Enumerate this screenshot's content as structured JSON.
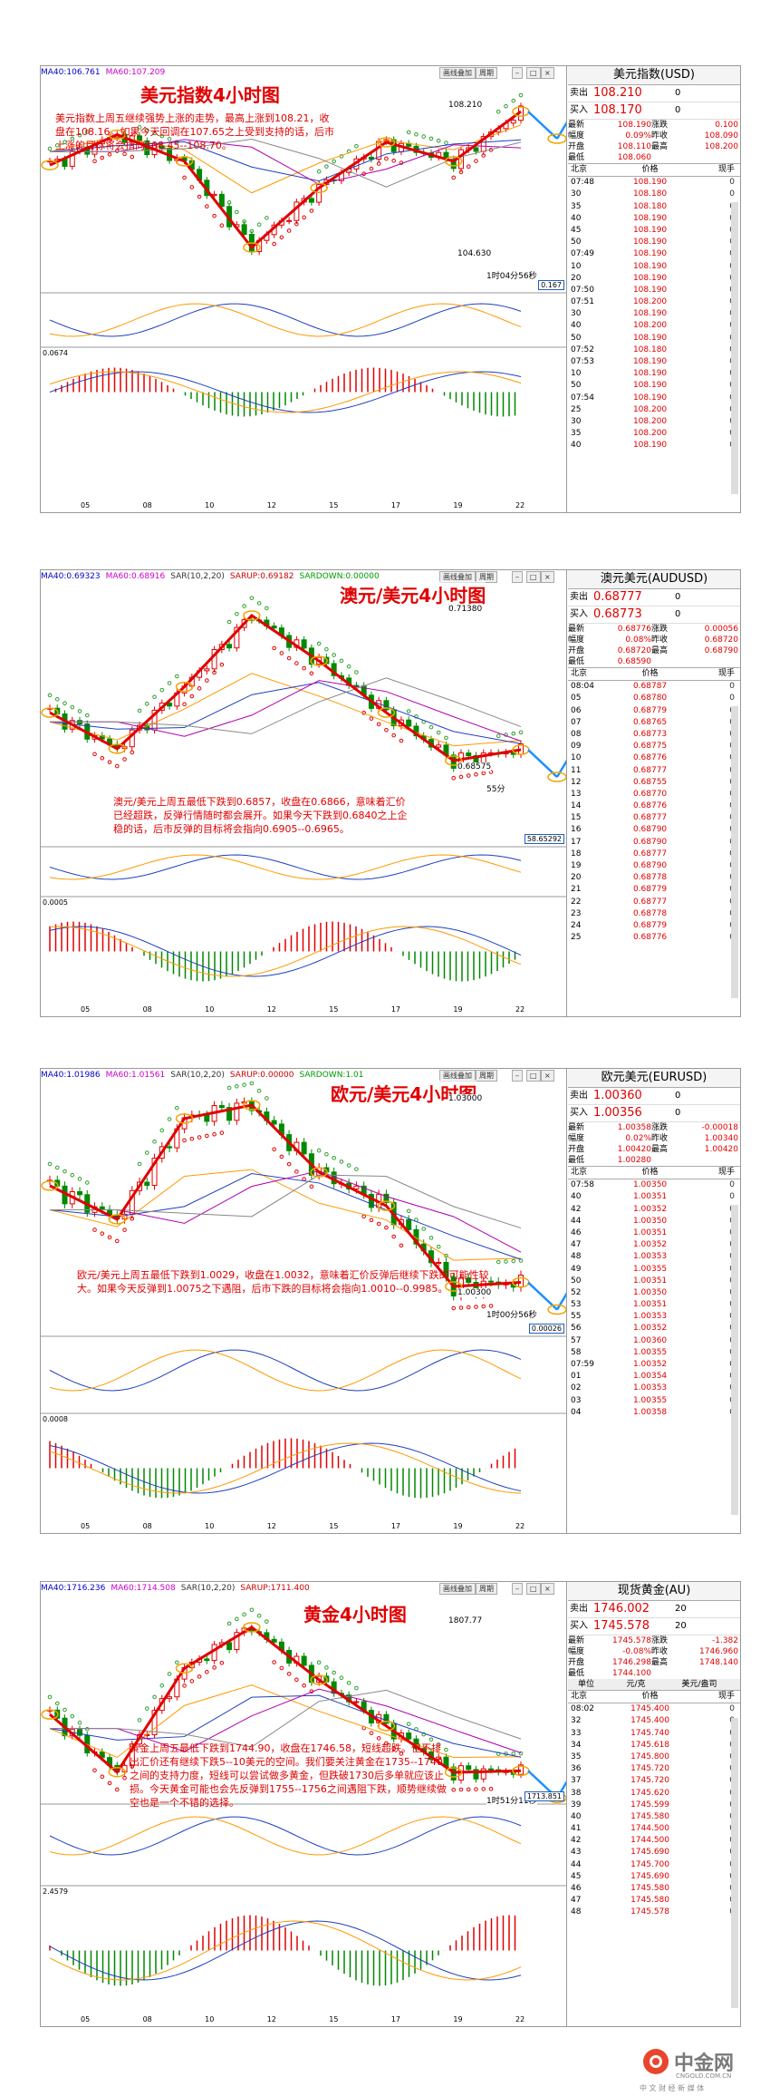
{
  "panels": [
    {
      "id": "usd",
      "title": "美元指数4小时图",
      "indicators": [
        "MA40:106.761",
        "MA60:107.209"
      ],
      "buttons": [
        "画线叠加",
        "周期"
      ],
      "annotation": "美元指数上周五继续强势上涨的走势，最高上涨到108.21，收盘在108.16。如果今天回调在107.65之上受到支持的话，后市上涨的目标将会指向108.45--108.70。",
      "price_labels": [
        "108.210",
        "104.630"
      ],
      "timer": "1时04分56秒",
      "macd_low": "0.0674",
      "macd_box": "0.167",
      "x_ticks": [
        "05",
        "08",
        "10",
        "12",
        "15",
        "17",
        "19",
        "22"
      ],
      "quote": {
        "name": "美元指数(USD)",
        "sell_label": "卖出",
        "sell": "108.210",
        "sell_vol": "0",
        "buy_label": "买入",
        "buy": "108.170",
        "buy_vol": "0",
        "stats": [
          [
            "最新",
            "108.190",
            "涨跌",
            "0.100"
          ],
          [
            "幅度",
            "0.09%",
            "昨收",
            "108.090"
          ],
          [
            "开盘",
            "108.110",
            "最高",
            "108.200"
          ],
          [
            "最低",
            "108.060",
            "",
            ""
          ]
        ],
        "head": [
          "北京",
          "价格",
          "现手"
        ],
        "ticks": [
          [
            "07:48",
            "108.190",
            "0"
          ],
          [
            "30",
            "108.180",
            "0"
          ],
          [
            "35",
            "108.180",
            "0"
          ],
          [
            "40",
            "108.190",
            "0"
          ],
          [
            "45",
            "108.190",
            "0"
          ],
          [
            "50",
            "108.190",
            "0"
          ],
          [
            "07:49",
            "108.190",
            "0"
          ],
          [
            "10",
            "108.190",
            "0"
          ],
          [
            "20",
            "108.190",
            "0"
          ],
          [
            "07:50",
            "108.190",
            "0"
          ],
          [
            "07:51",
            "108.200",
            "0"
          ],
          [
            "30",
            "108.190",
            "0"
          ],
          [
            "40",
            "108.200",
            "0"
          ],
          [
            "50",
            "108.190",
            "0"
          ],
          [
            "07:52",
            "108.180",
            "0"
          ],
          [
            "07:53",
            "108.190",
            "0"
          ],
          [
            "10",
            "108.190",
            "0"
          ],
          [
            "50",
            "108.190",
            "0"
          ],
          [
            "07:54",
            "108.190",
            "0"
          ],
          [
            "25",
            "108.200",
            "0"
          ],
          [
            "30",
            "108.200",
            "0"
          ],
          [
            "35",
            "108.200",
            "0"
          ],
          [
            "40",
            "108.190",
            "0"
          ]
        ]
      }
    },
    {
      "id": "aud",
      "title": "澳元/美元4小时图",
      "indicators": [
        "MA40:0.69323",
        "MA60:0.68916",
        "SAR(10,2,20)",
        "SARUP:0.69182",
        "SARDOWN:0.00000"
      ],
      "buttons": [
        "画线叠加",
        "周期"
      ],
      "annotation": "澳元/美元上周五最低下跌到0.6857，收盘在0.6866，意味着汇价已经超跌，反弹行情随时都会展开。如果今天下跌到0.6840之上企稳的话，后市反弹的目标将会指向0.6905--0.6965。",
      "price_labels": [
        "0.71380",
        "0.68575"
      ],
      "timer": "55分",
      "macd_low": "0.0005",
      "macd_box": "58.65292",
      "x_ticks": [
        "05",
        "08",
        "10",
        "12",
        "15",
        "17",
        "19",
        "22"
      ],
      "quote": {
        "name": "澳元美元(AUDUSD)",
        "sell_label": "卖出",
        "sell": "0.68777",
        "sell_vol": "0",
        "buy_label": "买入",
        "buy": "0.68773",
        "buy_vol": "0",
        "stats": [
          [
            "最新",
            "0.68776",
            "涨跌",
            "0.00056"
          ],
          [
            "幅度",
            "0.08%",
            "昨收",
            "0.68720"
          ],
          [
            "开盘",
            "0.68720",
            "最高",
            "0.68790"
          ],
          [
            "最低",
            "0.68590",
            "",
            ""
          ]
        ],
        "head": [
          "北京",
          "价格",
          "现手"
        ],
        "ticks": [
          [
            "08:04",
            "0.68787",
            "0"
          ],
          [
            "05",
            "0.68780",
            "0"
          ],
          [
            "06",
            "0.68779",
            "0"
          ],
          [
            "07",
            "0.68765",
            "0"
          ],
          [
            "08",
            "0.68773",
            "0"
          ],
          [
            "09",
            "0.68775",
            "0"
          ],
          [
            "10",
            "0.68776",
            "0"
          ],
          [
            "11",
            "0.68777",
            "0"
          ],
          [
            "12",
            "0.68755",
            "0"
          ],
          [
            "13",
            "0.68770",
            "0"
          ],
          [
            "14",
            "0.68776",
            "0"
          ],
          [
            "15",
            "0.68777",
            "0"
          ],
          [
            "16",
            "0.68790",
            "0"
          ],
          [
            "17",
            "0.68790",
            "0"
          ],
          [
            "18",
            "0.68777",
            "0"
          ],
          [
            "19",
            "0.68790",
            "0"
          ],
          [
            "20",
            "0.68778",
            "0"
          ],
          [
            "21",
            "0.68779",
            "0"
          ],
          [
            "22",
            "0.68777",
            "0"
          ],
          [
            "23",
            "0.68778",
            "0"
          ],
          [
            "24",
            "0.68779",
            "0"
          ],
          [
            "25",
            "0.68776",
            "0"
          ]
        ]
      }
    },
    {
      "id": "eur",
      "title": "欧元/美元4小时图",
      "indicators": [
        "MA40:1.01986",
        "MA60:1.01561",
        "SAR(10,2,20)",
        "SARUP:0.00000",
        "SARDOWN:1.01"
      ],
      "buttons": [
        "画线叠加",
        "周期"
      ],
      "annotation": "欧元/美元上周五最低下跌到1.0029，收盘在1.0032，意味着汇价反弹后继续下跌的可能性较大。如果今天反弹到1.0075之下遇阻，后市下跌的目标将会指向1.0010--0.9985。",
      "price_labels": [
        "1.03000",
        "1.00300"
      ],
      "timer": "1时00分56秒",
      "macd_low": "0.0008",
      "macd_box": "0.00026",
      "x_ticks": [
        "05",
        "08",
        "10",
        "12",
        "15",
        "17",
        "19",
        "22"
      ],
      "quote": {
        "name": "欧元美元(EURUSD)",
        "sell_label": "卖出",
        "sell": "1.00360",
        "sell_vol": "0",
        "buy_label": "买入",
        "buy": "1.00356",
        "buy_vol": "0",
        "stats": [
          [
            "最新",
            "1.00358",
            "涨跌",
            "-0.00018"
          ],
          [
            "幅度",
            "0.02%",
            "昨收",
            "1.00340"
          ],
          [
            "开盘",
            "1.00420",
            "最高",
            "1.00420"
          ],
          [
            "最低",
            "1.00280",
            "",
            ""
          ]
        ],
        "head": [
          "北京",
          "价格",
          "现手"
        ],
        "ticks": [
          [
            "07:58",
            "1.00350",
            "0"
          ],
          [
            "40",
            "1.00351",
            "0"
          ],
          [
            "42",
            "1.00352",
            "0"
          ],
          [
            "44",
            "1.00350",
            "0"
          ],
          [
            "46",
            "1.00351",
            "0"
          ],
          [
            "47",
            "1.00352",
            "0"
          ],
          [
            "48",
            "1.00353",
            "0"
          ],
          [
            "49",
            "1.00355",
            "0"
          ],
          [
            "50",
            "1.00351",
            "0"
          ],
          [
            "52",
            "1.00350",
            "0"
          ],
          [
            "53",
            "1.00351",
            "0"
          ],
          [
            "55",
            "1.00353",
            "0"
          ],
          [
            "56",
            "1.00352",
            "0"
          ],
          [
            "57",
            "1.00360",
            "0"
          ],
          [
            "58",
            "1.00355",
            "0"
          ],
          [
            "07:59",
            "1.00352",
            "0"
          ],
          [
            "01",
            "1.00354",
            "0"
          ],
          [
            "02",
            "1.00353",
            "0"
          ],
          [
            "03",
            "1.00355",
            "0"
          ],
          [
            "04",
            "1.00358",
            "0"
          ]
        ]
      }
    },
    {
      "id": "gold",
      "title": "黄金4小时图",
      "indicators": [
        "MA40:1716.236",
        "MA60:1714.508",
        "SAR(10,2,20)",
        "SARUP:1711.400"
      ],
      "buttons": [
        "画线叠加",
        "周期"
      ],
      "annotation": "黄金上周五最低下跌到1744.90，收盘在1746.58，短线超跌。但不排出汇价还有继续下跌5--10美元的空间。我们要关注黄金在1735--1740之间的支持力度，短线可以尝试做多黄金，但跌破1730后多单就应该止损。今天黄金可能也会先反弹到1755--1756之间遇阻下跌，顺势继续做空也是一个不错的选择。",
      "price_labels": [
        "1807.77"
      ],
      "timer": "1时51分11秒",
      "macd_low": "2.4579",
      "macd_box": "1713.851",
      "x_ticks": [
        "05",
        "08",
        "10",
        "12",
        "15",
        "17",
        "19",
        "22"
      ],
      "quote": {
        "name": "现货黄金(AU)",
        "sell_label": "卖出",
        "sell": "1746.002",
        "sell_vol": "20",
        "buy_label": "买入",
        "buy": "1745.578",
        "buy_vol": "20",
        "stats": [
          [
            "最新",
            "1745.578",
            "涨跌",
            "-1.382"
          ],
          [
            "幅度",
            "-0.08%",
            "昨收",
            "1746.960"
          ],
          [
            "开盘",
            "1746.298",
            "最高",
            "1748.140"
          ],
          [
            "最低",
            "1744.100",
            "",
            ""
          ]
        ],
        "unit_row": [
          "单位",
          "元/克",
          "美元/盎司"
        ],
        "head": [
          "北京",
          "价格",
          "现手"
        ],
        "ticks": [
          [
            "08:02",
            "1745.400",
            "0"
          ],
          [
            "32",
            "1745.400",
            "0"
          ],
          [
            "33",
            "1745.740",
            "0"
          ],
          [
            "34",
            "1745.618",
            "0"
          ],
          [
            "35",
            "1745.800",
            "0"
          ],
          [
            "36",
            "1745.720",
            "0"
          ],
          [
            "37",
            "1745.720",
            "0"
          ],
          [
            "38",
            "1745.620",
            "0"
          ],
          [
            "39",
            "1745.599",
            "0"
          ],
          [
            "40",
            "1745.580",
            "0"
          ],
          [
            "41",
            "1744.500",
            "0"
          ],
          [
            "42",
            "1744.500",
            "0"
          ],
          [
            "43",
            "1745.690",
            "0"
          ],
          [
            "44",
            "1745.700",
            "0"
          ],
          [
            "45",
            "1745.690",
            "0"
          ],
          [
            "46",
            "1745.580",
            "0"
          ],
          [
            "47",
            "1745.580",
            "0"
          ],
          [
            "48",
            "1745.578",
            "0"
          ]
        ]
      }
    }
  ],
  "logo": {
    "main": "中金网",
    "url": "CNGOLD.COM.CN",
    "tagline": "中 文 财 经 新 媒 体"
  },
  "chart_data": [
    {
      "type": "line",
      "title": "美元指数4小时图",
      "x": [
        "05",
        "08",
        "10",
        "12",
        "15",
        "17",
        "19",
        "22"
      ],
      "series": [
        {
          "values": [
            106.8,
            107.6,
            106.9,
            104.63,
            106.2,
            107.4,
            106.9,
            108.21
          ]
        }
      ]
    },
    {
      "type": "line",
      "title": "澳元/美元4小时图",
      "x": [
        "05",
        "08",
        "10",
        "12",
        "15",
        "17",
        "19",
        "22"
      ],
      "series": [
        {
          "values": [
            0.695,
            0.688,
            0.7,
            0.7138,
            0.705,
            0.695,
            0.6857,
            0.6878
          ]
        }
      ]
    },
    {
      "type": "line",
      "title": "欧元/美元4小时图",
      "x": [
        "05",
        "08",
        "10",
        "12",
        "15",
        "17",
        "19",
        "22"
      ],
      "series": [
        {
          "values": [
            1.018,
            1.013,
            1.028,
            1.03,
            1.02,
            1.015,
            1.003,
            1.0036
          ]
        }
      ]
    },
    {
      "type": "line",
      "title": "黄金4小时图",
      "x": [
        "05",
        "08",
        "10",
        "12",
        "15",
        "17",
        "19",
        "22"
      ],
      "series": [
        {
          "values": [
            1770,
            1745,
            1790,
            1807.77,
            1785,
            1765,
            1744.9,
            1745.58
          ]
        }
      ]
    }
  ]
}
